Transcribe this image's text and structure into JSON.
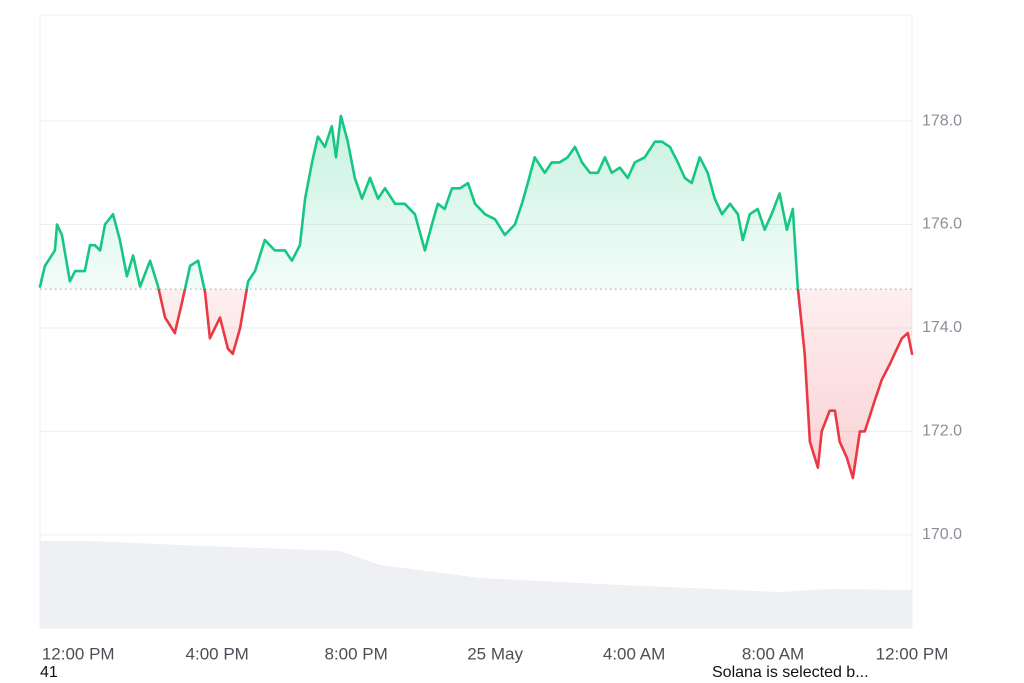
{
  "chart_data": {
    "type": "line",
    "x": [
      -1.1,
      -0.96,
      -0.67,
      -0.61,
      -0.47,
      -0.24,
      -0.09,
      0.19,
      0.34,
      0.48,
      0.63,
      0.77,
      1.0,
      1.2,
      1.4,
      1.58,
      1.78,
      2.07,
      2.3,
      2.5,
      2.78,
      2.99,
      3.22,
      3.45,
      3.65,
      3.79,
      4.08,
      4.31,
      4.45,
      4.66,
      4.89,
      5.09,
      5.37,
      5.66,
      5.95,
      6.15,
      6.38,
      6.53,
      6.73,
      6.9,
      7.1,
      7.3,
      7.42,
      7.56,
      7.76,
      7.96,
      8.17,
      8.4,
      8.63,
      8.83,
      9.12,
      9.4,
      9.69,
      9.98,
      10.18,
      10.35,
      10.55,
      10.76,
      10.99,
      11.22,
      11.42,
      11.71,
      12.0,
      12.28,
      12.57,
      12.77,
      12.94,
      13.14,
      13.43,
      13.63,
      13.86,
      14.09,
      14.3,
      14.5,
      14.73,
      14.96,
      15.16,
      15.36,
      15.59,
      15.82,
      16.02,
      16.31,
      16.6,
      16.8,
      17.03,
      17.26,
      17.46,
      17.66,
      17.89,
      18.12,
      18.32,
      18.53,
      18.76,
      18.99,
      19.13,
      19.33,
      19.56,
      19.76,
      19.96,
      20.19,
      20.4,
      20.57,
      20.71,
      20.91,
      21.06,
      21.29,
      21.4,
      21.63,
      21.78,
      21.92,
      22.12,
      22.3,
      22.5,
      22.64,
      22.93,
      23.13,
      23.36,
      23.5,
      23.71,
      23.88,
      24.0
    ],
    "series": [
      {
        "color": "#16c784",
        "negative_color": "#ea3943",
        "values": [
          174.8,
          175.2,
          175.5,
          176.0,
          175.8,
          174.9,
          175.1,
          175.1,
          175.6,
          175.6,
          175.5,
          176.0,
          176.2,
          175.7,
          175.0,
          175.4,
          174.8,
          175.3,
          174.8,
          174.2,
          173.9,
          174.5,
          175.2,
          175.3,
          174.7,
          173.8,
          174.2,
          173.6,
          173.5,
          174.0,
          174.9,
          175.1,
          175.7,
          175.5,
          175.5,
          175.3,
          175.6,
          176.5,
          177.2,
          177.7,
          177.5,
          177.9,
          177.3,
          178.1,
          177.6,
          176.9,
          176.5,
          176.9,
          176.5,
          176.7,
          176.4,
          176.4,
          176.2,
          175.5,
          176.0,
          176.4,
          176.3,
          176.7,
          176.7,
          176.8,
          176.4,
          176.2,
          176.1,
          175.8,
          176.0,
          176.4,
          176.8,
          177.3,
          177.0,
          177.2,
          177.2,
          177.3,
          177.5,
          177.2,
          177.0,
          177.0,
          177.3,
          177.0,
          177.1,
          176.9,
          177.2,
          177.3,
          177.6,
          177.6,
          177.5,
          177.2,
          176.9,
          176.8,
          177.3,
          177.0,
          176.5,
          176.2,
          176.4,
          176.2,
          175.7,
          176.2,
          176.3,
          175.9,
          176.2,
          176.6,
          175.9,
          176.3,
          174.8,
          173.5,
          171.8,
          171.3,
          172.0,
          172.4,
          172.4,
          171.8,
          171.5,
          171.1,
          172.0,
          172.0,
          172.6,
          173.0,
          173.3,
          173.5,
          173.8,
          173.9,
          173.5
        ]
      }
    ],
    "baseline": 174.75,
    "xlim": [
      -1.1,
      24
    ],
    "ylim": [
      168.2,
      180.05
    ],
    "xticks": [
      {
        "value": 0,
        "label": "12:00 PM"
      },
      {
        "value": 4,
        "label": "4:00 PM"
      },
      {
        "value": 8,
        "label": "8:00 PM"
      },
      {
        "value": 12,
        "label": "25 May"
      },
      {
        "value": 16,
        "label": "4:00 AM"
      },
      {
        "value": 20,
        "label": "8:00 AM"
      },
      {
        "value": 24,
        "label": "12:00 PM"
      }
    ],
    "yticks": [
      {
        "value": 170,
        "label": "170.0"
      },
      {
        "value": 172,
        "label": "172.0"
      },
      {
        "value": 174,
        "label": "174.0"
      },
      {
        "value": 176,
        "label": "176.0"
      },
      {
        "value": 178,
        "label": "178.0"
      }
    ],
    "grid": true
  },
  "footer_left": "41",
  "footer_right": "Solana is selected b..."
}
